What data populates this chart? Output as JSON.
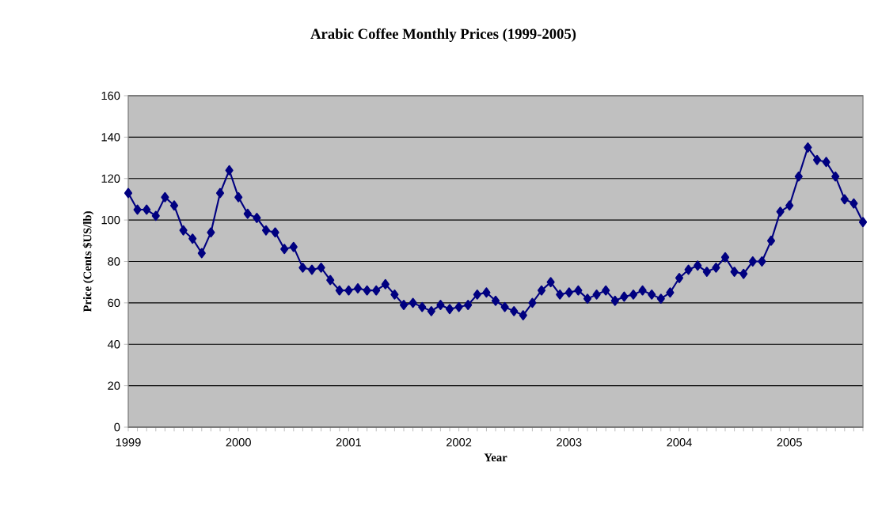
{
  "chart_data": {
    "type": "line",
    "title": "Arabic Coffee Monthly Prices (1999-2005)",
    "xlabel": "Year",
    "ylabel": "Price (Cents $US/lb)",
    "categories": [
      "1999",
      null,
      null,
      null,
      null,
      null,
      null,
      null,
      null,
      null,
      null,
      null,
      "2000",
      null,
      null,
      null,
      null,
      null,
      null,
      null,
      null,
      null,
      null,
      null,
      "2001",
      null,
      null,
      null,
      null,
      null,
      null,
      null,
      null,
      null,
      null,
      null,
      "2002",
      null,
      null,
      null,
      null,
      null,
      null,
      null,
      null,
      null,
      null,
      null,
      "2003",
      null,
      null,
      null,
      null,
      null,
      null,
      null,
      null,
      null,
      null,
      null,
      "2004",
      null,
      null,
      null,
      null,
      null,
      null,
      null,
      null,
      null,
      null,
      null,
      "2005",
      null,
      null,
      null,
      null,
      null,
      null,
      null,
      null
    ],
    "series": [
      {
        "color": "#000080",
        "values": [
          113,
          105,
          105,
          102,
          111,
          107,
          95,
          91,
          84,
          94,
          113,
          124,
          111,
          103,
          101,
          95,
          94,
          86,
          87,
          77,
          76,
          77,
          71,
          66,
          66,
          67,
          66,
          66,
          69,
          64,
          59,
          60,
          58,
          56,
          59,
          57,
          58,
          59,
          64,
          65,
          61,
          58,
          56,
          54,
          60,
          66,
          70,
          64,
          65,
          66,
          62,
          64,
          66,
          61,
          63,
          64,
          66,
          64,
          62,
          65,
          72,
          76,
          78,
          75,
          77,
          82,
          75,
          74,
          80,
          80,
          90,
          104,
          107,
          121,
          135,
          129,
          128,
          121,
          110,
          108,
          99
        ]
      }
    ],
    "ylim": [
      0,
      160
    ],
    "yticks": [
      0,
      20,
      40,
      60,
      80,
      100,
      120,
      140,
      160
    ],
    "grid": "y",
    "marker": "diamond",
    "line_style": "solid"
  }
}
